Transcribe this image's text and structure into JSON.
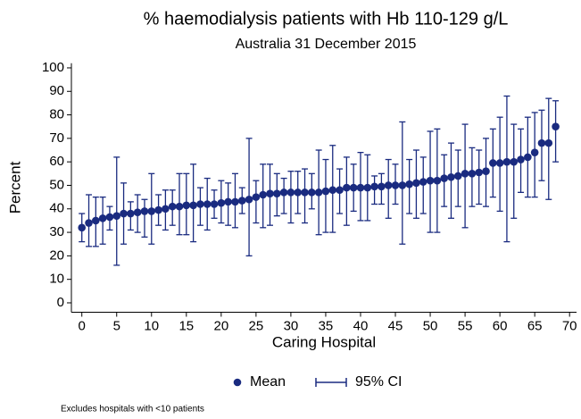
{
  "chart_data": {
    "type": "errorbar",
    "title": "% haemodialysis patients with Hb 110-129 g/L",
    "subtitle": "Australia 31 December 2015",
    "x_label": "Caring Hospital",
    "y_label": "Percent",
    "note": "Excludes hospitals with <10 patients",
    "x": [
      0,
      1,
      2,
      3,
      4,
      5,
      6,
      7,
      8,
      9,
      10,
      11,
      12,
      13,
      14,
      15,
      16,
      17,
      18,
      19,
      20,
      21,
      22,
      23,
      24,
      25,
      26,
      27,
      28,
      29,
      30,
      31,
      32,
      33,
      34,
      35,
      36,
      37,
      38,
      39,
      40,
      41,
      42,
      43,
      44,
      45,
      46,
      47,
      48,
      49,
      50,
      51,
      52,
      53,
      54,
      55,
      56,
      57,
      58,
      59,
      60,
      61,
      62,
      63,
      64,
      65,
      66,
      67,
      68
    ],
    "series": [
      {
        "name": "Mean",
        "color": "#1a2b80",
        "values": [
          32,
          34,
          35,
          36,
          36.5,
          37,
          38,
          38,
          38.5,
          39,
          39,
          39.5,
          40,
          41,
          41,
          41.5,
          41.5,
          42,
          42,
          42,
          42.5,
          43,
          43,
          43.5,
          44,
          45,
          46,
          46.5,
          46.5,
          47,
          47,
          47,
          47,
          47,
          47,
          47.5,
          48,
          48,
          49,
          49,
          49,
          49,
          49.5,
          49.5,
          50,
          50,
          50,
          50.5,
          51,
          51.5,
          52,
          52,
          53,
          53.5,
          54,
          55,
          55,
          55.5,
          56,
          59.5,
          59.5,
          60,
          60,
          61,
          62,
          64,
          68,
          68,
          75
        ]
      },
      {
        "name": "95% CI",
        "color": "#1a2b80",
        "lower": [
          26,
          24,
          24,
          25,
          31,
          16,
          25,
          31,
          30,
          28,
          25,
          33,
          31,
          33,
          29,
          29,
          26,
          33,
          31,
          36,
          34,
          33,
          32,
          38,
          20,
          34,
          32,
          33,
          37,
          38,
          34,
          38,
          34,
          40,
          29,
          30,
          30,
          38,
          33,
          39,
          35,
          35,
          42,
          42,
          36,
          42,
          25,
          38,
          36,
          38,
          30,
          30,
          41,
          36,
          41,
          32,
          41,
          42,
          41,
          45,
          39,
          26,
          36,
          47,
          45,
          45,
          52,
          44,
          60
        ],
        "upper": [
          38,
          46,
          45,
          45,
          41,
          62,
          51,
          43,
          46,
          44,
          55,
          46,
          48,
          48,
          55,
          55,
          59,
          49,
          53,
          48,
          52,
          51,
          55,
          49,
          70,
          52,
          59,
          59,
          55,
          53,
          56,
          56,
          57,
          55,
          65,
          61,
          67,
          57,
          62,
          59,
          64,
          63,
          54,
          55,
          61,
          59,
          77,
          61,
          65,
          62,
          73,
          74,
          63,
          68,
          65,
          76,
          66,
          65,
          70,
          74,
          79,
          88,
          76,
          74,
          79,
          81,
          82,
          87,
          86
        ]
      }
    ],
    "xlim": [
      -1.5,
      71
    ],
    "ylim": [
      -4,
      102
    ],
    "xticks": [
      0,
      5,
      10,
      15,
      20,
      25,
      30,
      35,
      40,
      45,
      50,
      55,
      60,
      65,
      70
    ],
    "yticks": [
      0,
      10,
      20,
      30,
      40,
      50,
      60,
      70,
      80,
      90,
      100
    ]
  }
}
